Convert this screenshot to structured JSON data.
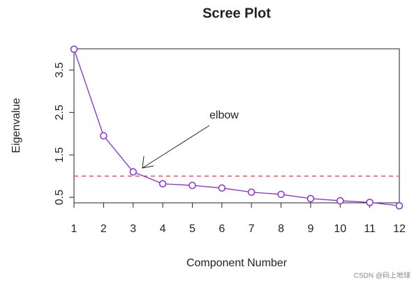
{
  "chart_data": {
    "type": "line",
    "title": "Scree Plot",
    "x_label": "Component Number",
    "y_label": "Eigenvalue",
    "x": [
      1,
      2,
      3,
      4,
      5,
      6,
      7,
      8,
      9,
      10,
      11,
      12
    ],
    "series": [
      {
        "name": "Eigenvalue",
        "color": "#8a2be2",
        "values": [
          3.99,
          1.95,
          1.1,
          0.82,
          0.78,
          0.72,
          0.62,
          0.57,
          0.47,
          0.42,
          0.38,
          0.3
        ]
      }
    ],
    "xlim": [
      1,
      12
    ],
    "xticks": [
      1,
      2,
      3,
      4,
      5,
      6,
      7,
      8,
      9,
      10,
      11,
      12
    ],
    "ylim": [
      0.37,
      4.0
    ],
    "yticks": [
      0.5,
      1.5,
      2.5,
      3.5
    ],
    "reference_line": {
      "value": 1,
      "color": "#e8505b"
    },
    "annotation": "elbow",
    "watermark": "CSDN @码上地球"
  }
}
